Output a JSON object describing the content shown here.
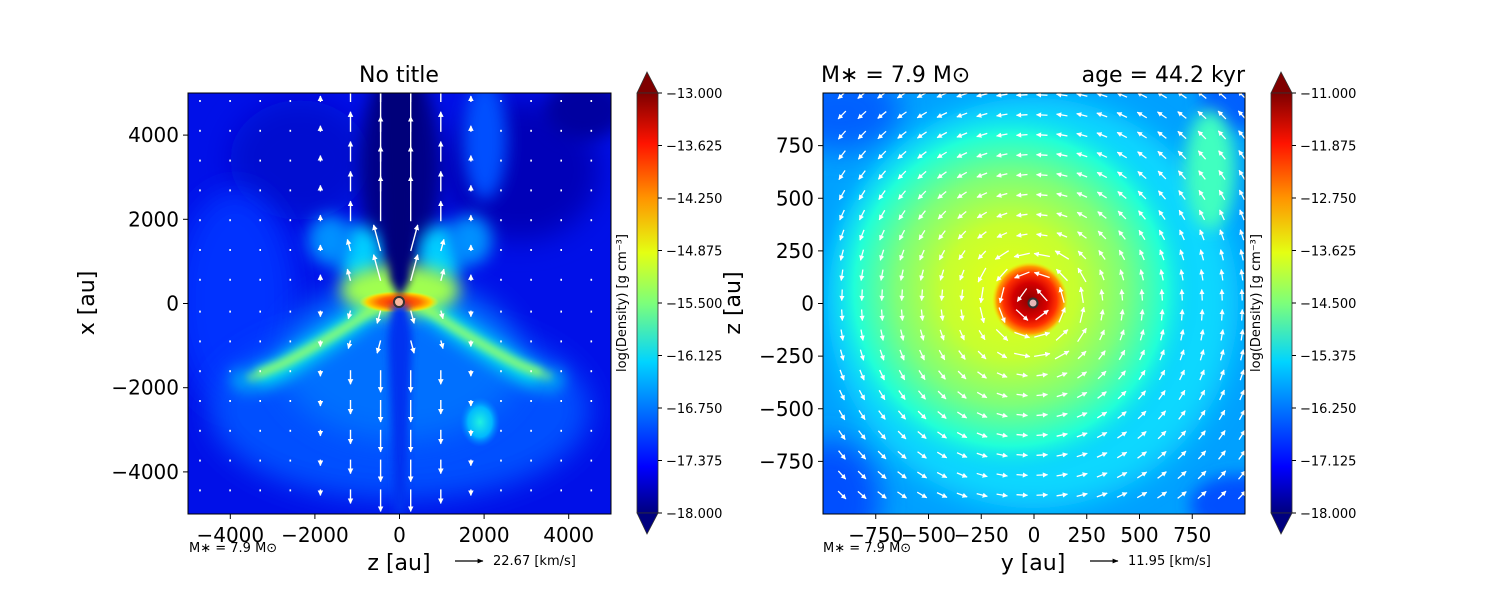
{
  "figure": {
    "panels": [
      {
        "id": "left",
        "title": "No title",
        "xlabel": "z [au]",
        "ylabel": "x [au]",
        "annotation_mass": "M∗ = 7.9 M⊙",
        "quiver_key_label": "22.67 [km/s]",
        "colorbar": {
          "label": "log(Density) [g cm⁻³]",
          "ticks": [
            "−13.000",
            "−13.625",
            "−14.250",
            "−14.875",
            "−15.500",
            "−16.125",
            "−16.750",
            "−17.375",
            "−18.000"
          ]
        }
      },
      {
        "id": "right",
        "title_left": "M∗  = 7.9 M⊙",
        "title_right": "age = 44.2 kyr",
        "xlabel": "y [au]",
        "ylabel": "z [au]",
        "annotation_mass": "M∗ = 7.9 M⊙",
        "quiver_key_label": "11.95 [km/s]",
        "colorbar": {
          "label": "log(Density) [g cm⁻³]",
          "ticks": [
            "−11.000",
            "−11.875",
            "−12.750",
            "−13.625",
            "−14.500",
            "−15.375",
            "−16.250",
            "−17.125",
            "−18.000"
          ]
        }
      }
    ]
  },
  "chart_data": [
    {
      "type": "heatmap",
      "title": "No title",
      "xlabel": "z [au]",
      "ylabel": "x [au]",
      "xlim": [
        -5000,
        5000
      ],
      "ylim": [
        -5000,
        5000
      ],
      "xticks": [
        -4000,
        -2000,
        0,
        2000,
        4000
      ],
      "xtick_labels": [
        "−4000",
        "−2000",
        "0",
        "2000",
        "4000"
      ],
      "yticks": [
        4000,
        2000,
        0,
        -2000,
        -4000
      ],
      "ytick_labels": [
        "4000",
        "2000",
        "0",
        "−2000",
        "−4000"
      ],
      "colormap": "jet",
      "colorbar_range": [
        -18.0,
        -13.0
      ],
      "colorbar_label": "log(Density) [g cm^-3]",
      "colorbar_ticks": [
        -13.0,
        -13.625,
        -14.25,
        -14.875,
        -15.5,
        -16.125,
        -16.75,
        -17.375,
        -18.0
      ],
      "colorbar_extend": "both",
      "overlay": "velocity quiver (bipolar outflow along z=0 axis, vertical)",
      "quiver_key": "22.67 [km/s]",
      "annotation": "M* = 7.9 Msun",
      "features": [
        {
          "name": "central star",
          "x": 0,
          "y": 0
        },
        {
          "name": "dense disk",
          "x_range": [
            -600,
            600
          ],
          "y": 0,
          "log_density": -13.6
        },
        {
          "name": "left arm",
          "from": [
            -300,
            -200
          ],
          "to": [
            -3500,
            -1700
          ],
          "log_density": -15.4
        },
        {
          "name": "right arm",
          "from": [
            300,
            -200
          ],
          "to": [
            3500,
            -1700
          ],
          "log_density": -15.4
        },
        {
          "name": "clump",
          "x": 2000,
          "y": -2800,
          "log_density": -16.0
        }
      ]
    },
    {
      "type": "heatmap",
      "title": "M* = 7.9 Msun   age = 44.2 kyr",
      "xlabel": "y [au]",
      "ylabel": "z [au]",
      "xlim": [
        -1000,
        1000
      ],
      "ylim": [
        -1000,
        1000
      ],
      "xticks": [
        -750,
        -500,
        -250,
        0,
        250,
        500,
        750
      ],
      "xtick_labels": [
        "−750",
        "−500",
        "−250",
        "0",
        "250",
        "500",
        "750"
      ],
      "yticks": [
        750,
        500,
        250,
        0,
        -250,
        -500,
        -750
      ],
      "ytick_labels": [
        "750",
        "500",
        "250",
        "0",
        "−250",
        "−500",
        "−750"
      ],
      "colormap": "jet",
      "colorbar_range": [
        -18.0,
        -11.0
      ],
      "colorbar_label": "log(Density) [g cm^-3]",
      "colorbar_ticks": [
        -11.0,
        -11.875,
        -12.75,
        -13.625,
        -14.5,
        -15.375,
        -16.25,
        -17.125,
        -18.0
      ],
      "colorbar_extend": "both",
      "overlay": "velocity quiver (counter-clockwise rotation)",
      "quiver_key": "11.95 [km/s]",
      "annotation": "M* = 7.9 Msun",
      "features": [
        {
          "name": "central star",
          "x": 0,
          "y": 0
        },
        {
          "name": "dense core",
          "x": 0,
          "y": 0,
          "radius": 150,
          "log_density": -11.3
        },
        {
          "name": "envelope",
          "x": -100,
          "y": 50,
          "radius": 600,
          "log_density": -13.6
        }
      ]
    }
  ]
}
